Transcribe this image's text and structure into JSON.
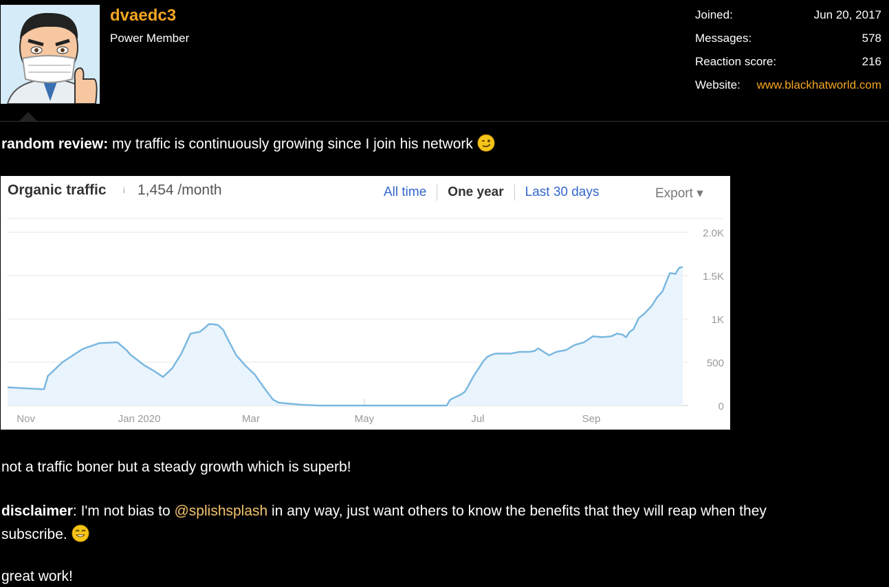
{
  "profile": {
    "username": "dvaedc3",
    "title": "Power Member",
    "stats": [
      {
        "label": "Joined:",
        "value": "Jun 20, 2017"
      },
      {
        "label": "Messages:",
        "value": "578"
      },
      {
        "label": "Reaction score:",
        "value": "216"
      }
    ],
    "website_label": "Website:",
    "website_value": "www.blackhatworld.com"
  },
  "post": {
    "review_label": "random review:",
    "review_text": " my traffic is continuously growing since I join his network ",
    "line2": "not a traffic boner but a steady growth which is superb!",
    "disclaimer_label": "disclaimer",
    "disclaimer_text1": ": I'm not bias to ",
    "mention": "@splishsplash",
    "disclaimer_text2": " in any way, just want others to know the benefits that they will reap when they",
    "disclaimer_text3": "subscribe. ",
    "closing": "great work!",
    "emoji_wink": "wink-emoji-icon",
    "emoji_smile": "smile-emoji-icon"
  },
  "chart_header": {
    "title": "Organic traffic",
    "info_mark": "i",
    "value": "1,454 /month",
    "tabs": [
      "All time",
      "One year",
      "Last 30 days"
    ],
    "active_tab": "One year",
    "export_label": "Export ▾"
  },
  "chart_data": {
    "type": "area",
    "ylim": [
      0,
      2000
    ],
    "y_ticks": [
      "2.0K",
      "1.5K",
      "1K",
      "500",
      "0"
    ],
    "y_tick_values": [
      2000,
      1500,
      1000,
      500,
      0
    ],
    "x_ticks": [
      "Nov",
      "Jan 2020",
      "Mar",
      "May",
      "Jul",
      "Sep"
    ],
    "x_tick_days": [
      10,
      72,
      133,
      195,
      257,
      319
    ],
    "xlim": [
      0,
      372
    ],
    "grid": true,
    "line_color": "#79b8e0",
    "fill_color": "#eaf4fc",
    "series": [
      {
        "x": [
          0,
          18,
          20,
          22,
          30,
          40,
          42,
          50,
          60,
          65,
          67,
          75,
          80,
          85,
          90,
          95,
          100,
          102,
          105,
          108,
          110,
          112,
          115,
          118,
          120,
          125,
          130,
          135,
          140,
          145,
          148,
          150,
          160,
          165,
          170,
          180,
          185,
          190,
          195,
          210,
          225,
          240,
          242,
          248,
          250,
          255,
          260,
          262,
          265,
          267,
          270,
          275,
          280,
          285,
          288,
          290,
          293,
          296,
          300,
          305,
          310,
          315,
          320,
          325,
          330,
          333,
          336,
          338,
          340,
          342,
          345,
          348,
          352,
          355,
          358,
          360,
          362,
          365,
          367,
          369
        ],
        "y": [
          210,
          190,
          190,
          340,
          500,
          640,
          660,
          720,
          730,
          640,
          590,
          460,
          400,
          330,
          430,
          600,
          830,
          840,
          850,
          900,
          940,
          940,
          930,
          870,
          780,
          580,
          460,
          360,
          210,
          70,
          35,
          30,
          10,
          5,
          0,
          0,
          0,
          0,
          0,
          0,
          0,
          0,
          70,
          130,
          160,
          350,
          510,
          560,
          590,
          600,
          600,
          600,
          620,
          620,
          630,
          660,
          620,
          580,
          620,
          640,
          700,
          730,
          800,
          790,
          800,
          830,
          820,
          790,
          850,
          880,
          1010,
          1060,
          1150,
          1250,
          1320,
          1430,
          1530,
          1520,
          1590,
          1600
        ]
      }
    ]
  }
}
